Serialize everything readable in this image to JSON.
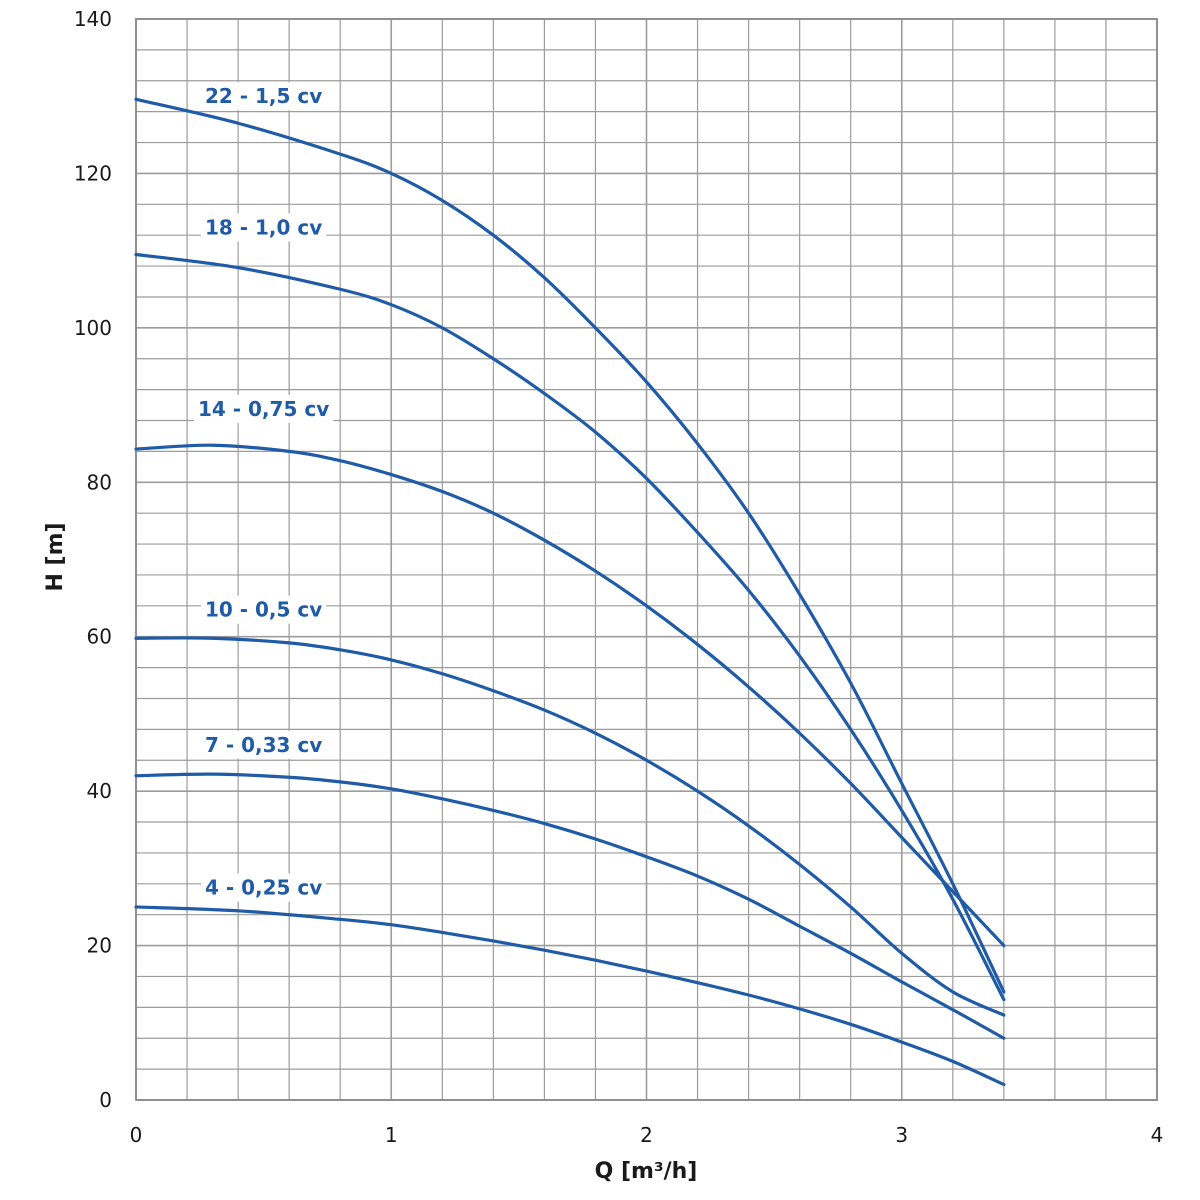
{
  "chart_data": {
    "type": "line",
    "xlabel": "Q [m³/h]",
    "ylabel": "H [m]",
    "xlim": [
      0,
      4
    ],
    "ylim": [
      0,
      140
    ],
    "x_major_step": 1,
    "x_minor_step": 0.2,
    "y_major_step": 20,
    "y_minor_step": 4,
    "grid": true,
    "x_ticks": [
      "0",
      "1",
      "2",
      "3",
      "4"
    ],
    "y_ticks": [
      "0",
      "20",
      "40",
      "60",
      "80",
      "100",
      "120",
      "140"
    ],
    "line_color": "#1f5ba6",
    "series": [
      {
        "name": "22 - 1,5 cv",
        "label_at": [
          0.5,
          130
        ],
        "x": [
          0,
          0.4,
          0.8,
          1.0,
          1.2,
          1.4,
          1.6,
          1.8,
          2.0,
          2.2,
          2.4,
          2.6,
          2.8,
          3.0,
          3.2,
          3.4
        ],
        "y": [
          129.6,
          126.5,
          122.5,
          120,
          116.5,
          112,
          106.5,
          100,
          93,
          85,
          76,
          65.5,
          54,
          41,
          28,
          14
        ]
      },
      {
        "name": "18 - 1,0 cv",
        "label_at": [
          0.5,
          113
        ],
        "x": [
          0,
          0.4,
          0.8,
          1.0,
          1.2,
          1.4,
          1.6,
          1.8,
          2.0,
          2.2,
          2.4,
          2.6,
          2.8,
          3.0,
          3.2,
          3.4
        ],
        "y": [
          109.5,
          107.8,
          105,
          103,
          100,
          96,
          91.5,
          86.5,
          80.5,
          73.5,
          66,
          57.5,
          48,
          37.5,
          26,
          13
        ]
      },
      {
        "name": "14 - 0,75 cv",
        "label_at": [
          0.5,
          89.5
        ],
        "x": [
          0,
          0.3,
          0.6,
          0.8,
          1.0,
          1.2,
          1.4,
          1.6,
          1.8,
          2.0,
          2.2,
          2.4,
          2.6,
          2.8,
          3.0,
          3.2,
          3.4
        ],
        "y": [
          84.3,
          84.8,
          84,
          82.8,
          81,
          78.8,
          76,
          72.5,
          68.5,
          64,
          59,
          53.5,
          47.5,
          41,
          34,
          27,
          20
        ]
      },
      {
        "name": "10 - 0,5 cv",
        "label_at": [
          0.5,
          63.5
        ],
        "x": [
          0,
          0.3,
          0.6,
          0.8,
          1.0,
          1.2,
          1.4,
          1.6,
          1.8,
          2.0,
          2.2,
          2.4,
          2.6,
          2.8,
          3.0,
          3.2,
          3.4
        ],
        "y": [
          59.8,
          59.8,
          59.2,
          58.3,
          57,
          55.2,
          53,
          50.5,
          47.5,
          44,
          40,
          35.5,
          30.5,
          25,
          19,
          14,
          11
        ]
      },
      {
        "name": "7 - 0,33 cv",
        "label_at": [
          0.5,
          46
        ],
        "x": [
          0,
          0.3,
          0.6,
          0.8,
          1.0,
          1.2,
          1.4,
          1.6,
          1.8,
          2.0,
          2.2,
          2.4,
          2.6,
          2.8,
          3.0,
          3.2,
          3.4
        ],
        "y": [
          42,
          42.2,
          41.8,
          41.2,
          40.3,
          39,
          37.5,
          35.8,
          33.8,
          31.5,
          29,
          26,
          22.5,
          19,
          15.3,
          11.7,
          8
        ]
      },
      {
        "name": "4 - 0,25 cv",
        "label_at": [
          0.5,
          27.5
        ],
        "x": [
          0,
          0.4,
          0.8,
          1.0,
          1.2,
          1.4,
          1.6,
          1.8,
          2.0,
          2.2,
          2.4,
          2.6,
          2.8,
          3.0,
          3.2,
          3.4
        ],
        "y": [
          25,
          24.5,
          23.4,
          22.7,
          21.7,
          20.6,
          19.4,
          18.1,
          16.7,
          15.2,
          13.6,
          11.8,
          9.8,
          7.5,
          5,
          2
        ]
      }
    ]
  }
}
